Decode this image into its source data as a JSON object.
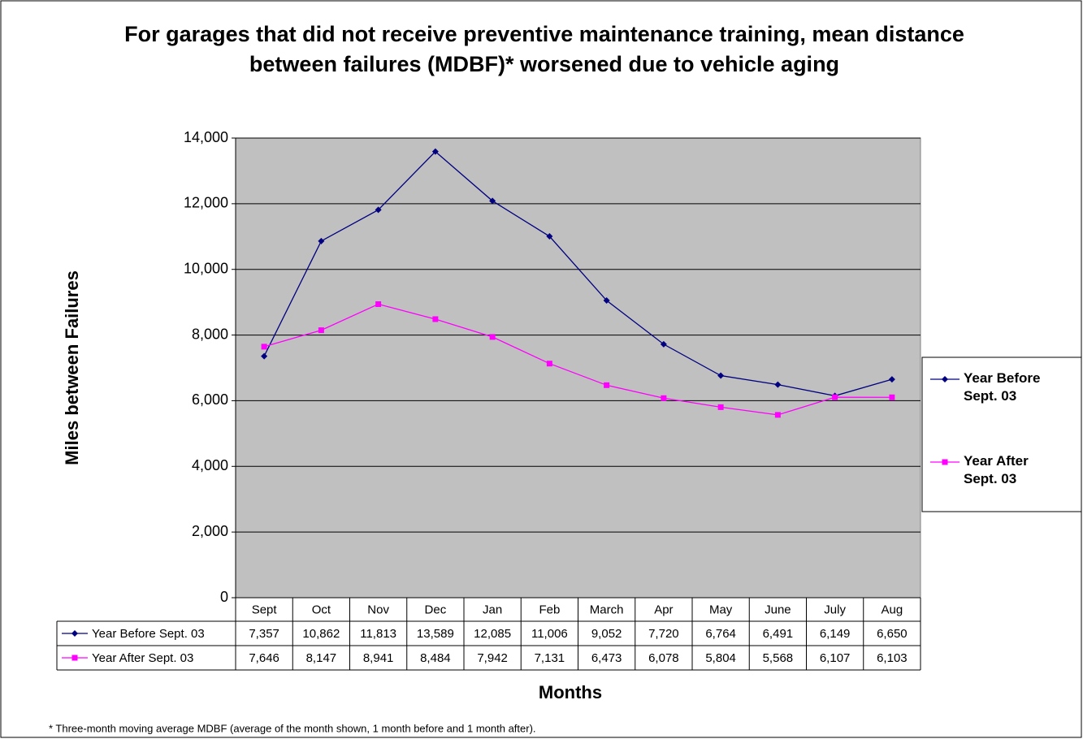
{
  "chart_data": {
    "type": "line",
    "title": "For garages that did not receive preventive maintenance training, mean distance between failures (MDBF)* worsened due to vehicle aging",
    "x_label": "Months",
    "y_label": "Miles between Failures",
    "footnote": "* Three-month moving average MDBF (average of the month shown, 1 month before and 1 month after).",
    "categories": [
      "Sept",
      "Oct",
      "Nov",
      "Dec",
      "Jan",
      "Feb",
      "March",
      "Apr",
      "May",
      "June",
      "July",
      "Aug"
    ],
    "series": [
      {
        "name": "Year Before Sept. 03",
        "color": "#000080",
        "marker": "diamond",
        "values": [
          7357,
          10862,
          11813,
          13589,
          12085,
          11006,
          9052,
          7720,
          6764,
          6491,
          6149,
          6650
        ],
        "value_labels": [
          "7,357",
          "10,862",
          "11,813",
          "13,589",
          "12,085",
          "11,006",
          "9,052",
          "7,720",
          "6,764",
          "6,491",
          "6,149",
          "6,650"
        ]
      },
      {
        "name": "Year After Sept. 03",
        "color": "#ff00ff",
        "marker": "square",
        "values": [
          7646,
          8147,
          8941,
          8484,
          7942,
          7131,
          6473,
          6078,
          5804,
          5568,
          6107,
          6103
        ],
        "value_labels": [
          "7,646",
          "8,147",
          "8,941",
          "8,484",
          "7,942",
          "7,131",
          "6,473",
          "6,078",
          "5,804",
          "5,568",
          "6,107",
          "6,103"
        ]
      }
    ],
    "ylim": [
      0,
      14000
    ],
    "yticks": [
      0,
      {
        "value": 2000,
        "label": "2,000"
      },
      {
        "value": 4000,
        "label": "4,000"
      },
      {
        "value": 6000,
        "label": "6,000"
      },
      {
        "value": 8000,
        "label": "8,000"
      },
      {
        "value": 10000,
        "label": "10,000"
      },
      {
        "value": 12000,
        "label": "12,000"
      },
      {
        "value": 14000,
        "label": "14,000"
      }
    ],
    "grid": true,
    "plot_background": "#c0c0c0",
    "legend": "right",
    "data_table": true
  }
}
